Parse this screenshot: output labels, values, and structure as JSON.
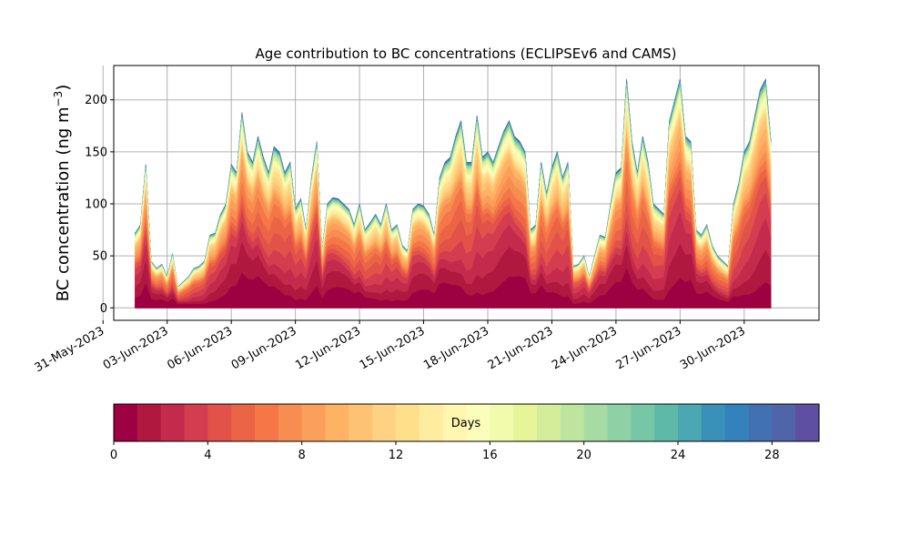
{
  "chart_data": {
    "type": "area",
    "title": "Age contribution to BC concentrations (ECLIPSEv6 and CAMS)",
    "ylabel_main": "BC concentration (ng m",
    "ylabel_sup": "−3",
    "ylabel_close": ")",
    "xlabel": "",
    "ylim": [
      -12,
      233
    ],
    "yticks": [
      0,
      50,
      100,
      150,
      200
    ],
    "xlim": [
      "2023-05-31T12:00",
      "2023-07-03T12:00"
    ],
    "xticks": [
      "31-May-2023",
      "03-Jun-2023",
      "06-Jun-2023",
      "09-Jun-2023",
      "12-Jun-2023",
      "15-Jun-2023",
      "18-Jun-2023",
      "21-Jun-2023",
      "24-Jun-2023",
      "27-Jun-2023",
      "30-Jun-2023"
    ],
    "grid": true,
    "stacking": "cumulative by age (days)",
    "total_series": {
      "name": "total",
      "x": [
        "2023-06-01T12",
        "2023-06-01T18",
        "2023-06-02T00",
        "2023-06-02T06",
        "2023-06-02T12",
        "2023-06-02T18",
        "2023-06-03T00",
        "2023-06-03T06",
        "2023-06-03T12",
        "2023-06-03T18",
        "2023-06-04T00",
        "2023-06-04T06",
        "2023-06-04T12",
        "2023-06-04T18",
        "2023-06-05T00",
        "2023-06-05T06",
        "2023-06-05T12",
        "2023-06-05T18",
        "2023-06-06T00",
        "2023-06-06T06",
        "2023-06-06T12",
        "2023-06-06T18",
        "2023-06-07T00",
        "2023-06-07T06",
        "2023-06-07T12",
        "2023-06-07T18",
        "2023-06-08T00",
        "2023-06-08T06",
        "2023-06-08T12",
        "2023-06-08T18",
        "2023-06-09T00",
        "2023-06-09T06",
        "2023-06-09T12",
        "2023-06-09T18",
        "2023-06-10T00",
        "2023-06-10T06",
        "2023-06-10T12",
        "2023-06-10T18",
        "2023-06-11T00",
        "2023-06-11T06",
        "2023-06-11T12",
        "2023-06-11T18",
        "2023-06-12T00",
        "2023-06-12T06",
        "2023-06-12T12",
        "2023-06-12T18",
        "2023-06-13T00",
        "2023-06-13T06",
        "2023-06-13T12",
        "2023-06-13T18",
        "2023-06-14T00",
        "2023-06-14T06",
        "2023-06-14T12",
        "2023-06-14T18",
        "2023-06-15T00",
        "2023-06-15T06",
        "2023-06-15T12",
        "2023-06-15T18",
        "2023-06-16T00",
        "2023-06-16T06",
        "2023-06-16T12",
        "2023-06-16T18",
        "2023-06-17T00",
        "2023-06-17T06",
        "2023-06-17T12",
        "2023-06-17T18",
        "2023-06-18T00",
        "2023-06-18T06",
        "2023-06-18T12",
        "2023-06-18T18",
        "2023-06-19T00",
        "2023-06-19T06",
        "2023-06-19T12",
        "2023-06-19T18",
        "2023-06-20T00",
        "2023-06-20T06",
        "2023-06-20T12",
        "2023-06-20T18",
        "2023-06-21T00",
        "2023-06-21T06",
        "2023-06-21T12",
        "2023-06-21T18",
        "2023-06-22T00",
        "2023-06-22T06",
        "2023-06-22T12",
        "2023-06-22T18",
        "2023-06-23T00",
        "2023-06-23T06",
        "2023-06-23T12",
        "2023-06-23T18",
        "2023-06-24T00",
        "2023-06-24T06",
        "2023-06-24T12",
        "2023-06-24T18",
        "2023-06-25T00",
        "2023-06-25T06",
        "2023-06-25T12",
        "2023-06-25T18",
        "2023-06-26T00",
        "2023-06-26T06",
        "2023-06-26T12",
        "2023-06-26T18",
        "2023-06-27T00",
        "2023-06-27T06",
        "2023-06-27T12",
        "2023-06-27T18",
        "2023-06-28T00",
        "2023-06-28T06",
        "2023-06-28T12",
        "2023-06-28T18",
        "2023-06-29T00",
        "2023-06-29T06",
        "2023-06-29T12",
        "2023-06-29T18",
        "2023-06-30T00",
        "2023-06-30T06",
        "2023-06-30T12",
        "2023-06-30T18",
        "2023-07-01T00",
        "2023-07-01T06"
      ],
      "values": [
        72,
        80,
        138,
        45,
        38,
        42,
        30,
        52,
        20,
        25,
        30,
        38,
        40,
        45,
        70,
        72,
        90,
        100,
        138,
        130,
        188,
        150,
        140,
        165,
        145,
        130,
        155,
        150,
        130,
        140,
        95,
        105,
        75,
        125,
        160,
        55,
        100,
        106,
        105,
        100,
        95,
        80,
        100,
        75,
        82,
        90,
        80,
        100,
        75,
        80,
        60,
        55,
        95,
        100,
        98,
        90,
        70,
        125,
        140,
        145,
        165,
        180,
        140,
        140,
        185,
        145,
        150,
        140,
        155,
        170,
        180,
        165,
        160,
        150,
        75,
        80,
        140,
        110,
        135,
        150,
        125,
        140,
        40,
        42,
        50,
        30,
        50,
        70,
        68,
        100,
        130,
        135,
        220,
        160,
        130,
        165,
        140,
        100,
        95,
        90,
        180,
        200,
        220,
        165,
        160,
        75,
        70,
        80,
        60,
        50,
        45,
        40,
        100,
        120,
        150,
        160,
        185,
        210,
        220,
        160
      ]
    },
    "colorbar": {
      "label": "Days",
      "min": 0,
      "max": 30,
      "ticks": [
        0,
        4,
        8,
        12,
        16,
        20,
        24,
        28
      ],
      "colormap": "Spectral",
      "colors": [
        "#9e0142",
        "#b0183f",
        "#c32a4c",
        "#d43d4f",
        "#e25249",
        "#ec6446",
        "#f57747",
        "#f88d51",
        "#fba05b",
        "#fdb264",
        "#fdc372",
        "#fed282",
        "#fee08b",
        "#feec9f",
        "#fff6b0",
        "#fbfdba",
        "#f2faac",
        "#e6f598",
        "#d4ed9b",
        "#bee5a0",
        "#a6dba4",
        "#8ed1a4",
        "#76c7a5",
        "#5fb9a9",
        "#4ba7b1",
        "#3990b9",
        "#3482bb",
        "#4271b2",
        "#5064a9",
        "#5e4fa2"
      ]
    }
  }
}
